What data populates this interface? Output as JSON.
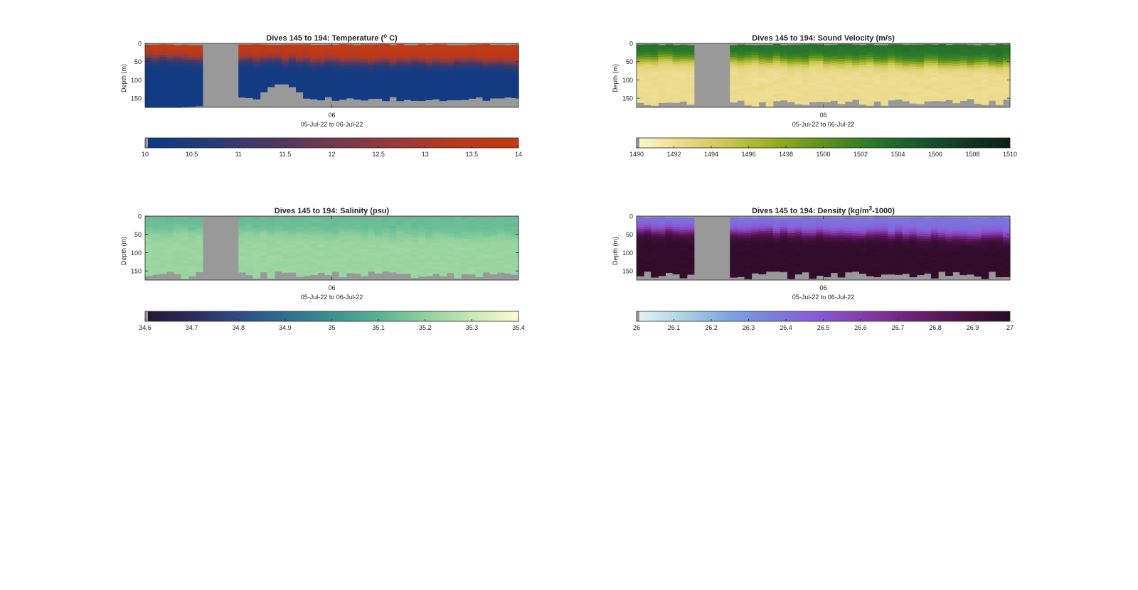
{
  "chart_data": [
    {
      "id": "temperature",
      "type": "heatmap",
      "title": "Dives 145 to 194: Temperature (",
      "title_sup": "o",
      "title_suffix": " C)",
      "ylabel": "Depth (m)",
      "xlabel": "05-Jul-22 to 06-Jul-22",
      "x_tick_label": "06",
      "y_ticks": [
        0,
        50,
        100,
        150
      ],
      "ylim": [
        0,
        175
      ],
      "y_reversed": true,
      "colorbar": {
        "ticks": [
          "10",
          "10.5",
          "11",
          "11.5",
          "12",
          "12.5",
          "13",
          "13.5",
          "14"
        ],
        "range": [
          10,
          14
        ],
        "colors": [
          "#0b3a87",
          "#233c78",
          "#4a3763",
          "#703a50",
          "#963a3a",
          "#b8391e",
          "#c43a10"
        ]
      },
      "profile": {
        "surface": 13.8,
        "deep": 10.2,
        "thermocline_depth": 40,
        "thermocline_depth_late": 55
      },
      "missing_color": "#999999",
      "grid": false
    },
    {
      "id": "sound_velocity",
      "type": "heatmap",
      "title": "Dives 145 to 194: Sound Velocity (m/s)",
      "ylabel": "Depth (m)",
      "xlabel": "05-Jul-22 to 06-Jul-22",
      "x_tick_label": "06",
      "y_ticks": [
        0,
        50,
        100,
        150
      ],
      "ylim": [
        0,
        175
      ],
      "y_reversed": true,
      "colorbar": {
        "ticks": [
          "1490",
          "1492",
          "1494",
          "1496",
          "1498",
          "1500",
          "1502",
          "1504",
          "1506",
          "1508",
          "1510"
        ],
        "range": [
          1490,
          1510
        ],
        "colors": [
          "#fdf8d2",
          "#ebd98a",
          "#c8c44d",
          "#94ab1e",
          "#5c921d",
          "#2c7a2b",
          "#18592d",
          "#123a24",
          "#0c1f16"
        ]
      },
      "profile": {
        "surface": 1503.2,
        "deep": 1492.3,
        "thermocline_depth": 40,
        "thermocline_depth_late": 55
      },
      "missing_color": "#999999",
      "grid": false
    },
    {
      "id": "salinity",
      "type": "heatmap",
      "title": "Dives 145 to 194: Salinity (psu)",
      "ylabel": "Depth (m)",
      "xlabel": "05-Jul-22 to 06-Jul-22",
      "x_tick_label": "06",
      "y_ticks": [
        0,
        50,
        100,
        150
      ],
      "ylim": [
        0,
        175
      ],
      "y_reversed": true,
      "colorbar": {
        "ticks": [
          "34.6",
          "34.7",
          "34.8",
          "34.9",
          "35",
          "35.1",
          "35.2",
          "35.3",
          "35.4"
        ],
        "range": [
          34.6,
          35.4
        ],
        "colors": [
          "#211830",
          "#2c2a5e",
          "#2f4a86",
          "#2d6e8f",
          "#3a9191",
          "#57b393",
          "#8fd19d",
          "#c8e8b3",
          "#fdfbd2"
        ]
      },
      "profile": {
        "surface": 35.13,
        "deep": 35.22,
        "thermocline_depth": 40,
        "thermocline_depth_late": 55
      },
      "missing_color": "#999999",
      "grid": false
    },
    {
      "id": "density",
      "type": "heatmap",
      "title": "Dives 145 to 194: Density (kg/m",
      "title_sup": "3",
      "title_suffix": "-1000)",
      "ylabel": "Depth (m)",
      "xlabel": "05-Jul-22 to 06-Jul-22",
      "x_tick_label": "06",
      "y_ticks": [
        0,
        50,
        100,
        150
      ],
      "ylim": [
        0,
        175
      ],
      "y_reversed": true,
      "colorbar": {
        "ticks": [
          "26",
          "26.1",
          "26.2",
          "26.3",
          "26.4",
          "26.5",
          "26.6",
          "26.7",
          "26.8",
          "26.9",
          "27"
        ],
        "range": [
          26,
          27
        ],
        "colors": [
          "#e8f4f3",
          "#a9d3e6",
          "#7aa4e4",
          "#7a7ae0",
          "#8a55d4",
          "#8338a6",
          "#6a1f72",
          "#4a1247",
          "#2b0a24"
        ]
      },
      "profile": {
        "surface": 26.4,
        "deep": 26.97,
        "thermocline_depth": 40,
        "thermocline_depth_late": 55
      },
      "missing_color": "#999999",
      "grid": false
    }
  ]
}
